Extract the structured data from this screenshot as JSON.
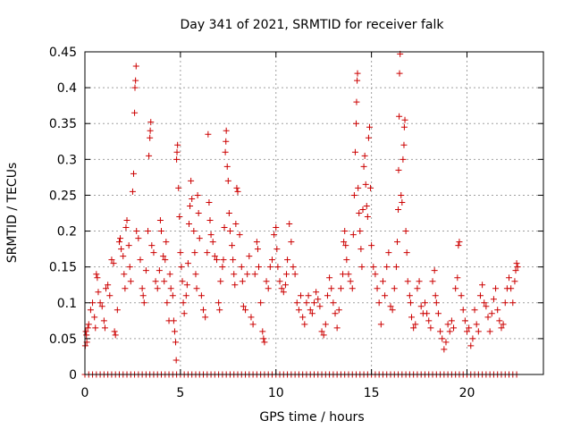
{
  "chart_data": {
    "type": "scatter",
    "title": "Day 341 of 2021, SRMTID for receiver falk",
    "xlabel": "GPS time / hours",
    "ylabel": "SRMTID / TECUs",
    "xlim": [
      0,
      24
    ],
    "ylim": [
      0,
      0.45
    ],
    "xticks": [
      0,
      5,
      10,
      15,
      20
    ],
    "xtick_labels": [
      "0",
      "5",
      "10",
      "15",
      "20"
    ],
    "yticks": [
      0,
      0.05,
      0.1,
      0.15,
      0.2,
      0.25,
      0.3,
      0.35,
      0.4,
      0.45
    ],
    "ytick_labels": [
      "0",
      "0.05",
      "0.1",
      "0.15",
      "0.2",
      "0.25",
      "0.3",
      "0.35",
      "0.4",
      "0.45"
    ],
    "grid": true,
    "marker": "plus",
    "color": "#cc0000",
    "series": [
      {
        "name": "SRMTID",
        "points": [
          [
            0.02,
            0.04
          ],
          [
            0.05,
            0.06
          ],
          [
            0.08,
            0.055
          ],
          [
            0.1,
            0.045
          ],
          [
            0.15,
            0.065
          ],
          [
            0.2,
            0.07
          ],
          [
            0.3,
            0.09
          ],
          [
            0.4,
            0.1
          ],
          [
            0.5,
            0.08
          ],
          [
            0.55,
            0.065
          ],
          [
            0.6,
            0.14
          ],
          [
            0.65,
            0.135
          ],
          [
            0.7,
            0.115
          ],
          [
            0.8,
            0.1
          ],
          [
            0.9,
            0.095
          ],
          [
            1.0,
            0.075
          ],
          [
            1.05,
            0.065
          ],
          [
            1.1,
            0.12
          ],
          [
            1.2,
            0.125
          ],
          [
            1.3,
            0.11
          ],
          [
            1.4,
            0.16
          ],
          [
            1.5,
            0.155
          ],
          [
            1.55,
            0.06
          ],
          [
            1.6,
            0.055
          ],
          [
            1.7,
            0.09
          ],
          [
            1.8,
            0.185
          ],
          [
            1.85,
            0.19
          ],
          [
            1.9,
            0.175
          ],
          [
            2.0,
            0.165
          ],
          [
            2.05,
            0.14
          ],
          [
            2.1,
            0.12
          ],
          [
            2.15,
            0.205
          ],
          [
            2.2,
            0.215
          ],
          [
            2.3,
            0.18
          ],
          [
            2.35,
            0.15
          ],
          [
            2.4,
            0.13
          ],
          [
            2.5,
            0.255
          ],
          [
            2.55,
            0.28
          ],
          [
            2.6,
            0.365
          ],
          [
            2.62,
            0.4
          ],
          [
            2.65,
            0.41
          ],
          [
            2.68,
            0.43
          ],
          [
            2.7,
            0.2
          ],
          [
            2.8,
            0.19
          ],
          [
            2.9,
            0.16
          ],
          [
            3.0,
            0.12
          ],
          [
            3.05,
            0.11
          ],
          [
            3.1,
            0.1
          ],
          [
            3.2,
            0.145
          ],
          [
            3.3,
            0.2
          ],
          [
            3.35,
            0.305
          ],
          [
            3.4,
            0.33
          ],
          [
            3.42,
            0.34
          ],
          [
            3.45,
            0.352
          ],
          [
            3.5,
            0.18
          ],
          [
            3.6,
            0.17
          ],
          [
            3.7,
            0.13
          ],
          [
            3.8,
            0.12
          ],
          [
            3.9,
            0.145
          ],
          [
            3.95,
            0.215
          ],
          [
            4.0,
            0.2
          ],
          [
            4.1,
            0.165
          ],
          [
            4.15,
            0.13
          ],
          [
            4.2,
            0.16
          ],
          [
            4.25,
            0.185
          ],
          [
            4.3,
            0.1
          ],
          [
            4.4,
            0.075
          ],
          [
            4.45,
            0.14
          ],
          [
            4.5,
            0.12
          ],
          [
            4.6,
            0.11
          ],
          [
            4.65,
            0.075
          ],
          [
            4.7,
            0.06
          ],
          [
            4.75,
            0.045
          ],
          [
            4.78,
            0.02
          ],
          [
            4.8,
            0.3
          ],
          [
            4.82,
            0.31
          ],
          [
            4.85,
            0.32
          ],
          [
            4.9,
            0.26
          ],
          [
            4.95,
            0.22
          ],
          [
            5.0,
            0.17
          ],
          [
            5.05,
            0.15
          ],
          [
            5.1,
            0.13
          ],
          [
            5.15,
            0.1
          ],
          [
            5.2,
            0.085
          ],
          [
            5.3,
            0.11
          ],
          [
            5.35,
            0.125
          ],
          [
            5.4,
            0.155
          ],
          [
            5.45,
            0.21
          ],
          [
            5.5,
            0.235
          ],
          [
            5.55,
            0.27
          ],
          [
            5.6,
            0.245
          ],
          [
            5.7,
            0.2
          ],
          [
            5.75,
            0.17
          ],
          [
            5.8,
            0.14
          ],
          [
            5.85,
            0.12
          ],
          [
            5.9,
            0.25
          ],
          [
            5.95,
            0.225
          ],
          [
            6.0,
            0.19
          ],
          [
            6.1,
            0.11
          ],
          [
            6.2,
            0.09
          ],
          [
            6.3,
            0.08
          ],
          [
            6.4,
            0.17
          ],
          [
            6.45,
            0.335
          ],
          [
            6.5,
            0.24
          ],
          [
            6.55,
            0.215
          ],
          [
            6.6,
            0.195
          ],
          [
            6.7,
            0.185
          ],
          [
            6.8,
            0.165
          ],
          [
            6.9,
            0.16
          ],
          [
            7.0,
            0.1
          ],
          [
            7.05,
            0.09
          ],
          [
            7.1,
            0.13
          ],
          [
            7.2,
            0.15
          ],
          [
            7.25,
            0.16
          ],
          [
            7.3,
            0.205
          ],
          [
            7.35,
            0.31
          ],
          [
            7.38,
            0.325
          ],
          [
            7.4,
            0.34
          ],
          [
            7.45,
            0.29
          ],
          [
            7.5,
            0.27
          ],
          [
            7.55,
            0.225
          ],
          [
            7.6,
            0.2
          ],
          [
            7.7,
            0.18
          ],
          [
            7.75,
            0.16
          ],
          [
            7.8,
            0.14
          ],
          [
            7.85,
            0.125
          ],
          [
            7.9,
            0.21
          ],
          [
            7.95,
            0.26
          ],
          [
            8.0,
            0.255
          ],
          [
            8.1,
            0.195
          ],
          [
            8.2,
            0.15
          ],
          [
            8.25,
            0.13
          ],
          [
            8.3,
            0.095
          ],
          [
            8.4,
            0.09
          ],
          [
            8.5,
            0.14
          ],
          [
            8.6,
            0.165
          ],
          [
            8.7,
            0.08
          ],
          [
            8.8,
            0.07
          ],
          [
            8.9,
            0.14
          ],
          [
            9.0,
            0.185
          ],
          [
            9.05,
            0.175
          ],
          [
            9.1,
            0.15
          ],
          [
            9.2,
            0.1
          ],
          [
            9.3,
            0.06
          ],
          [
            9.35,
            0.05
          ],
          [
            9.4,
            0.045
          ],
          [
            9.5,
            0.13
          ],
          [
            9.6,
            0.12
          ],
          [
            9.7,
            0.15
          ],
          [
            9.8,
            0.16
          ],
          [
            9.9,
            0.195
          ],
          [
            10.0,
            0.205
          ],
          [
            10.05,
            0.175
          ],
          [
            10.1,
            0.15
          ],
          [
            10.2,
            0.13
          ],
          [
            10.3,
            0.12
          ],
          [
            10.4,
            0.115
          ],
          [
            10.5,
            0.125
          ],
          [
            10.55,
            0.14
          ],
          [
            10.6,
            0.16
          ],
          [
            10.7,
            0.21
          ],
          [
            10.8,
            0.185
          ],
          [
            10.9,
            0.15
          ],
          [
            11.0,
            0.14
          ],
          [
            11.1,
            0.1
          ],
          [
            11.2,
            0.09
          ],
          [
            11.3,
            0.11
          ],
          [
            11.4,
            0.08
          ],
          [
            11.5,
            0.07
          ],
          [
            11.6,
            0.1
          ],
          [
            11.7,
            0.11
          ],
          [
            11.8,
            0.09
          ],
          [
            11.9,
            0.085
          ],
          [
            12.0,
            0.1
          ],
          [
            12.1,
            0.115
          ],
          [
            12.2,
            0.105
          ],
          [
            12.3,
            0.095
          ],
          [
            12.4,
            0.06
          ],
          [
            12.5,
            0.055
          ],
          [
            12.6,
            0.07
          ],
          [
            12.7,
            0.11
          ],
          [
            12.8,
            0.135
          ],
          [
            12.9,
            0.12
          ],
          [
            13.0,
            0.1
          ],
          [
            13.1,
            0.085
          ],
          [
            13.2,
            0.065
          ],
          [
            13.3,
            0.09
          ],
          [
            13.4,
            0.12
          ],
          [
            13.5,
            0.14
          ],
          [
            13.55,
            0.185
          ],
          [
            13.6,
            0.2
          ],
          [
            13.65,
            0.18
          ],
          [
            13.7,
            0.16
          ],
          [
            13.8,
            0.14
          ],
          [
            13.9,
            0.13
          ],
          [
            14.0,
            0.12
          ],
          [
            14.05,
            0.195
          ],
          [
            14.1,
            0.25
          ],
          [
            14.15,
            0.31
          ],
          [
            14.2,
            0.35
          ],
          [
            14.22,
            0.38
          ],
          [
            14.25,
            0.41
          ],
          [
            14.27,
            0.42
          ],
          [
            14.3,
            0.26
          ],
          [
            14.35,
            0.225
          ],
          [
            14.4,
            0.2
          ],
          [
            14.45,
            0.175
          ],
          [
            14.5,
            0.15
          ],
          [
            14.55,
            0.23
          ],
          [
            14.6,
            0.29
          ],
          [
            14.65,
            0.305
          ],
          [
            14.7,
            0.265
          ],
          [
            14.75,
            0.235
          ],
          [
            14.8,
            0.22
          ],
          [
            14.85,
            0.33
          ],
          [
            14.9,
            0.345
          ],
          [
            14.95,
            0.26
          ],
          [
            15.0,
            0.18
          ],
          [
            15.1,
            0.15
          ],
          [
            15.2,
            0.14
          ],
          [
            15.3,
            0.12
          ],
          [
            15.4,
            0.1
          ],
          [
            15.5,
            0.07
          ],
          [
            15.6,
            0.13
          ],
          [
            15.7,
            0.11
          ],
          [
            15.8,
            0.15
          ],
          [
            15.9,
            0.17
          ],
          [
            16.0,
            0.095
          ],
          [
            16.1,
            0.09
          ],
          [
            16.2,
            0.12
          ],
          [
            16.3,
            0.15
          ],
          [
            16.35,
            0.185
          ],
          [
            16.4,
            0.23
          ],
          [
            16.42,
            0.285
          ],
          [
            16.45,
            0.36
          ],
          [
            16.47,
            0.42
          ],
          [
            16.5,
            0.447
          ],
          [
            16.55,
            0.25
          ],
          [
            16.6,
            0.24
          ],
          [
            16.65,
            0.3
          ],
          [
            16.7,
            0.32
          ],
          [
            16.72,
            0.345
          ],
          [
            16.75,
            0.355
          ],
          [
            16.8,
            0.2
          ],
          [
            16.85,
            0.17
          ],
          [
            16.9,
            0.13
          ],
          [
            17.0,
            0.11
          ],
          [
            17.05,
            0.1
          ],
          [
            17.1,
            0.08
          ],
          [
            17.2,
            0.065
          ],
          [
            17.3,
            0.07
          ],
          [
            17.4,
            0.12
          ],
          [
            17.5,
            0.13
          ],
          [
            17.6,
            0.095
          ],
          [
            17.7,
            0.085
          ],
          [
            17.8,
            0.1
          ],
          [
            17.9,
            0.085
          ],
          [
            18.0,
            0.075
          ],
          [
            18.1,
            0.065
          ],
          [
            18.2,
            0.13
          ],
          [
            18.3,
            0.145
          ],
          [
            18.35,
            0.11
          ],
          [
            18.4,
            0.1
          ],
          [
            18.5,
            0.085
          ],
          [
            18.6,
            0.06
          ],
          [
            18.7,
            0.05
          ],
          [
            18.8,
            0.035
          ],
          [
            18.9,
            0.045
          ],
          [
            19.0,
            0.07
          ],
          [
            19.1,
            0.06
          ],
          [
            19.2,
            0.075
          ],
          [
            19.3,
            0.065
          ],
          [
            19.4,
            0.12
          ],
          [
            19.5,
            0.135
          ],
          [
            19.55,
            0.18
          ],
          [
            19.6,
            0.185
          ],
          [
            19.7,
            0.11
          ],
          [
            19.8,
            0.09
          ],
          [
            19.9,
            0.075
          ],
          [
            20.0,
            0.06
          ],
          [
            20.1,
            0.065
          ],
          [
            20.2,
            0.04
          ],
          [
            20.3,
            0.05
          ],
          [
            20.4,
            0.09
          ],
          [
            20.5,
            0.07
          ],
          [
            20.6,
            0.06
          ],
          [
            20.7,
            0.11
          ],
          [
            20.8,
            0.125
          ],
          [
            20.9,
            0.1
          ],
          [
            21.0,
            0.095
          ],
          [
            21.1,
            0.08
          ],
          [
            21.2,
            0.06
          ],
          [
            21.3,
            0.085
          ],
          [
            21.4,
            0.105
          ],
          [
            21.5,
            0.12
          ],
          [
            21.6,
            0.09
          ],
          [
            21.7,
            0.075
          ],
          [
            21.8,
            0.065
          ],
          [
            21.9,
            0.07
          ],
          [
            22.0,
            0.1
          ],
          [
            22.1,
            0.12
          ],
          [
            22.2,
            0.135
          ],
          [
            22.3,
            0.12
          ],
          [
            22.4,
            0.1
          ],
          [
            22.5,
            0.13
          ],
          [
            22.55,
            0.145
          ],
          [
            22.6,
            0.155
          ],
          [
            22.65,
            0.15
          ]
        ],
        "zero_x_range": [
          0,
          22.6
        ],
        "zero_x_step": 0.2
      }
    ]
  }
}
